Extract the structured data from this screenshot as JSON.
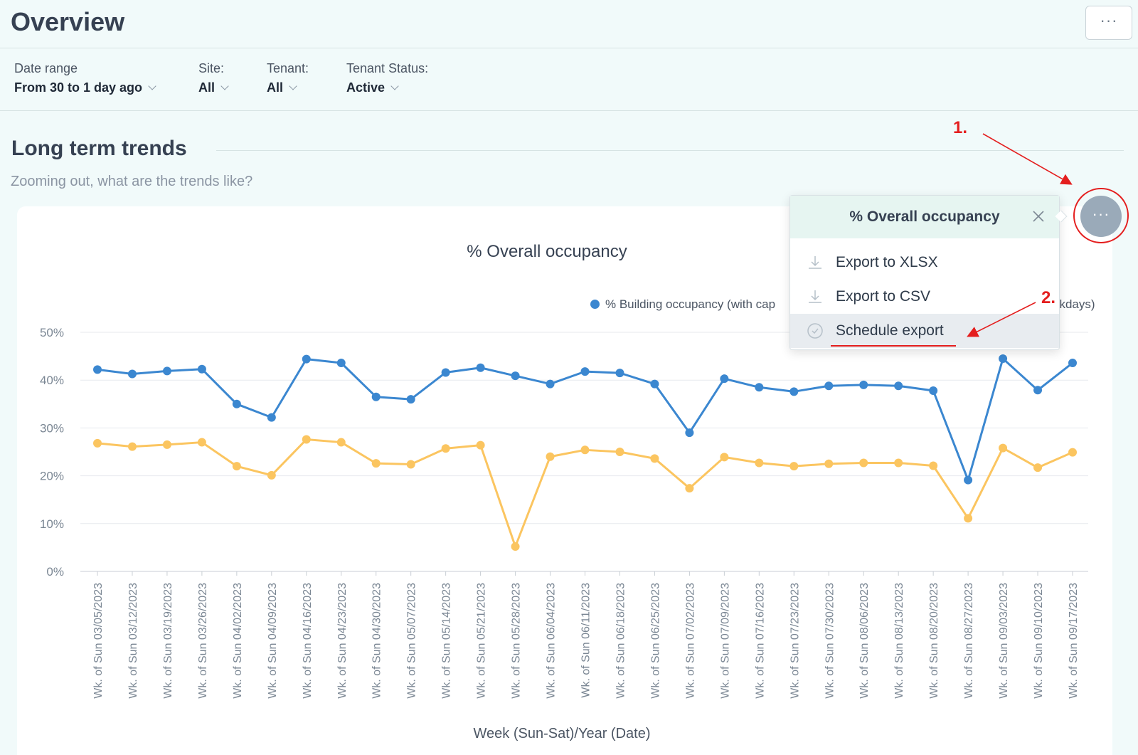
{
  "header": {
    "title": "Overview",
    "more_label": "···"
  },
  "filters": [
    {
      "label": "Date range",
      "value": "From 30 to 1 day ago"
    },
    {
      "label": "Site:",
      "value": "All"
    },
    {
      "label": "Tenant:",
      "value": "All"
    },
    {
      "label": "Tenant Status:",
      "value": "Active"
    }
  ],
  "section": {
    "title": "Long term trends",
    "subtitle": "Zooming out, what are the trends like?"
  },
  "widget_menu": {
    "title": "% Overall occupancy",
    "items": [
      {
        "label": "Export to XLSX",
        "icon": "download-icon"
      },
      {
        "label": "Export to CSV",
        "icon": "download-icon"
      },
      {
        "label": "Schedule export",
        "icon": "clock-icon"
      }
    ],
    "button_label": "···"
  },
  "annotations": {
    "step1": "1.",
    "step2": "2."
  },
  "colors": {
    "blue": "#3b87d0",
    "orange": "#fbc560",
    "annotation": "#e41e1e"
  },
  "chart_data": {
    "type": "line",
    "title": "% Overall occupancy",
    "xlabel": "Week (Sun-Sat)/Year (Date)",
    "ylabel": "",
    "ylim": [
      0,
      50
    ],
    "yticks": [
      "0%",
      "10%",
      "20%",
      "30%",
      "40%",
      "50%"
    ],
    "legend": [
      "% Building occupancy (with cap",
      "ekdays)"
    ],
    "categories": [
      "Wk. of Sun 03/05/2023",
      "Wk. of Sun 03/12/2023",
      "Wk. of Sun 03/19/2023",
      "Wk. of Sun 03/26/2023",
      "Wk. of Sun 04/02/2023",
      "Wk. of Sun 04/09/2023",
      "Wk. of Sun 04/16/2023",
      "Wk. of Sun 04/23/2023",
      "Wk. of Sun 04/30/2023",
      "Wk. of Sun 05/07/2023",
      "Wk. of Sun 05/14/2023",
      "Wk. of Sun 05/21/2023",
      "Wk. of Sun 05/28/2023",
      "Wk. of Sun 06/04/2023",
      "Wk. of Sun 06/11/2023",
      "Wk. of Sun 06/18/2023",
      "Wk. of Sun 06/25/2023",
      "Wk. of Sun 07/02/2023",
      "Wk. of Sun 07/09/2023",
      "Wk. of Sun 07/16/2023",
      "Wk. of Sun 07/23/2023",
      "Wk. of Sun 07/30/2023",
      "Wk. of Sun 08/06/2023",
      "Wk. of Sun 08/13/2023",
      "Wk. of Sun 08/20/2023",
      "Wk. of Sun 08/27/2023",
      "Wk. of Sun 09/03/2023",
      "Wk. of Sun 09/10/2023",
      "Wk. of Sun 09/17/2023"
    ],
    "series": [
      {
        "name": "% Building occupancy (with capacity)",
        "color": "#3b87d0",
        "values": [
          42.2,
          41.3,
          41.9,
          42.3,
          35.0,
          32.2,
          44.4,
          43.6,
          36.5,
          36.0,
          41.6,
          42.6,
          40.9,
          39.2,
          41.8,
          41.5,
          39.2,
          29.0,
          40.3,
          38.5,
          37.6,
          38.8,
          39.0,
          38.8,
          37.8,
          19.1,
          44.5,
          37.9,
          43.6
        ]
      },
      {
        "name": "% Building occupancy (weekdays)",
        "color": "#fbc560",
        "values": [
          26.8,
          26.1,
          26.5,
          27.0,
          22.0,
          20.1,
          27.6,
          27.0,
          22.6,
          22.4,
          25.7,
          26.4,
          5.2,
          24.0,
          25.4,
          25.0,
          23.6,
          17.4,
          23.9,
          22.7,
          22.0,
          22.5,
          22.7,
          22.7,
          22.1,
          11.1,
          25.8,
          21.7,
          24.9
        ]
      }
    ]
  }
}
